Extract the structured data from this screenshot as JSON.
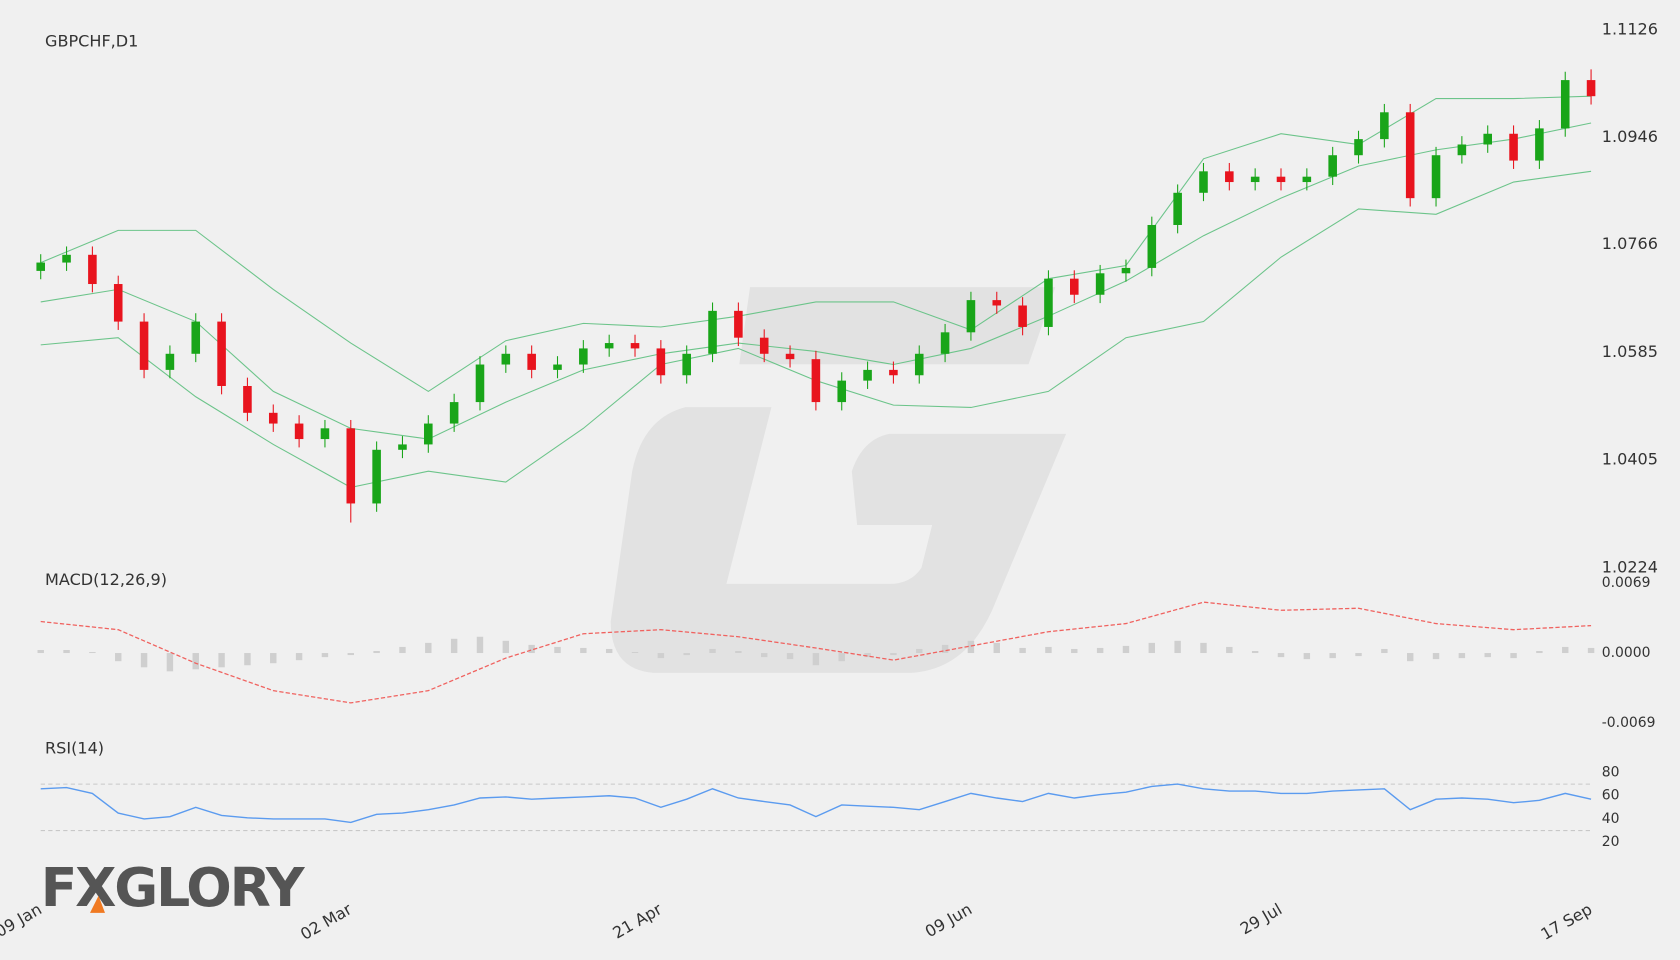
{
  "logo": "FXGLORY",
  "chart_data": [
    {
      "type": "candlestick",
      "title": "GBPCHF,D1",
      "categories": [
        "09 Jan",
        null,
        null,
        null,
        null,
        null,
        null,
        null,
        null,
        null,
        null,
        null,
        "02 Mar",
        null,
        null,
        null,
        null,
        null,
        null,
        null,
        null,
        null,
        null,
        null,
        "21 Apr",
        null,
        null,
        null,
        null,
        null,
        null,
        null,
        null,
        null,
        null,
        null,
        "09 Jun",
        null,
        null,
        null,
        null,
        null,
        null,
        null,
        null,
        null,
        null,
        null,
        "29 Jul",
        null,
        null,
        null,
        null,
        null,
        null,
        null,
        null,
        null,
        null,
        null,
        "17 Sep"
      ],
      "open": [
        1.0722,
        1.0736,
        1.0749,
        1.07,
        1.0637,
        1.0556,
        1.0583,
        1.0637,
        1.0529,
        1.0484,
        1.0466,
        1.044,
        1.0458,
        1.0332,
        1.0422,
        1.0431,
        1.0466,
        1.0502,
        1.0565,
        1.0583,
        1.0556,
        1.0565,
        1.0592,
        1.0601,
        1.0592,
        1.0547,
        1.0583,
        1.0655,
        1.061,
        1.0583,
        1.0574,
        1.0502,
        1.0538,
        1.0556,
        1.0547,
        1.0583,
        1.0619,
        1.0673,
        1.0664,
        1.0628,
        1.0709,
        1.0682,
        1.0718,
        1.0727,
        1.0799,
        1.0853,
        1.0889,
        1.0871,
        1.088,
        1.0871,
        1.088,
        1.0916,
        1.0943,
        1.0988,
        1.0844,
        1.0916,
        1.0934,
        1.0952,
        1.0907,
        1.0961,
        1.1042
      ],
      "high": [
        1.075,
        1.0763,
        1.0763,
        1.0714,
        1.0651,
        1.0597,
        1.0651,
        1.0651,
        1.0543,
        1.0498,
        1.048,
        1.0472,
        1.0472,
        1.0436,
        1.0445,
        1.048,
        1.0516,
        1.0579,
        1.0597,
        1.0597,
        1.0579,
        1.0606,
        1.0615,
        1.0615,
        1.0606,
        1.0597,
        1.0669,
        1.0669,
        1.0624,
        1.0597,
        1.0588,
        1.0552,
        1.057,
        1.057,
        1.0597,
        1.0633,
        1.0687,
        1.0687,
        1.0678,
        1.0723,
        1.0723,
        1.0732,
        1.0741,
        1.0813,
        1.0867,
        1.0903,
        1.0903,
        1.0894,
        1.0894,
        1.0894,
        1.093,
        1.0957,
        1.1002,
        1.1002,
        1.093,
        1.0948,
        1.0966,
        1.0966,
        1.0975,
        1.1056,
        1.106
      ],
      "low": [
        1.0708,
        1.0722,
        1.0686,
        1.0623,
        1.0542,
        1.0542,
        1.0569,
        1.0515,
        1.047,
        1.0452,
        1.0426,
        1.0426,
        1.03,
        1.0318,
        1.0408,
        1.0417,
        1.0452,
        1.0488,
        1.0551,
        1.0542,
        1.0542,
        1.0551,
        1.0578,
        1.0578,
        1.0533,
        1.0533,
        1.0569,
        1.0596,
        1.0569,
        1.056,
        1.0488,
        1.0488,
        1.0524,
        1.0533,
        1.0533,
        1.0569,
        1.0605,
        1.065,
        1.0614,
        1.0614,
        1.0668,
        1.0668,
        1.0704,
        1.0713,
        1.0785,
        1.0839,
        1.0857,
        1.0857,
        1.0857,
        1.0857,
        1.0866,
        1.0902,
        1.0929,
        1.083,
        1.083,
        1.0902,
        1.092,
        1.0893,
        1.0893,
        1.0947,
        1.1001
      ],
      "close": [
        1.0736,
        1.0749,
        1.07,
        1.0637,
        1.0556,
        1.0583,
        1.0637,
        1.0529,
        1.0484,
        1.0466,
        1.044,
        1.0458,
        1.0332,
        1.0422,
        1.0431,
        1.0466,
        1.0502,
        1.0565,
        1.0583,
        1.0556,
        1.0565,
        1.0592,
        1.0601,
        1.0592,
        1.0547,
        1.0583,
        1.0655,
        1.061,
        1.0583,
        1.0574,
        1.0502,
        1.0538,
        1.0556,
        1.0547,
        1.0583,
        1.0619,
        1.0673,
        1.0664,
        1.0628,
        1.0709,
        1.0682,
        1.0718,
        1.0727,
        1.0799,
        1.0853,
        1.0889,
        1.0871,
        1.088,
        1.0871,
        1.088,
        1.0916,
        1.0943,
        1.0988,
        1.0844,
        1.0916,
        1.0934,
        1.0952,
        1.0907,
        1.0961,
        1.1042,
        1.1015
      ],
      "up_color": "#19a519",
      "down_color": "#e8141e",
      "bands": {
        "color": "#6cc48a",
        "x": [
          0,
          3,
          6,
          9,
          12,
          15,
          18,
          21,
          24,
          27,
          30,
          33,
          36,
          39,
          42,
          45,
          48,
          51,
          54,
          57,
          60
        ],
        "upper": [
          1.0736,
          1.079,
          1.079,
          1.0691,
          1.0601,
          1.052,
          1.0605,
          1.0634,
          1.0628,
          1.0646,
          1.067,
          1.067,
          1.0623,
          1.0709,
          1.0731,
          1.091,
          1.0952,
          1.0934,
          1.1011,
          1.1011,
          1.1015
        ],
        "middle": [
          1.067,
          1.0691,
          1.0637,
          1.052,
          1.0458,
          1.044,
          1.0502,
          1.0556,
          1.0583,
          1.0601,
          1.0587,
          1.0565,
          1.0592,
          1.0646,
          1.0705,
          1.0781,
          1.0844,
          1.0898,
          1.0925,
          1.0943,
          1.097
        ],
        "lower": [
          1.0598,
          1.061,
          1.0511,
          1.0431,
          1.0359,
          1.0386,
          1.0368,
          1.0458,
          1.0565,
          1.0592,
          1.0538,
          1.0497,
          1.0493,
          1.052,
          1.061,
          1.0637,
          1.0745,
          1.0826,
          1.0817,
          1.0871,
          1.0889
        ]
      },
      "ylim": [
        1.0224,
        1.1126
      ],
      "yticks": [
        1.1126,
        1.0946,
        1.0766,
        1.0585,
        1.0405,
        1.0224
      ]
    },
    {
      "type": "macd",
      "title": "MACD(12,26,9)",
      "histogram": [
        0.0003,
        0.0003,
        0.0001,
        -0.0008,
        -0.0014,
        -0.0018,
        -0.0016,
        -0.0014,
        -0.0012,
        -0.001,
        -0.0007,
        -0.0004,
        -0.0002,
        0.0002,
        0.0006,
        0.001,
        0.0014,
        0.0016,
        0.0012,
        0.0008,
        0.0006,
        0.0005,
        0.0004,
        0.0001,
        -0.0005,
        -0.0002,
        0.0004,
        0.0002,
        -0.0004,
        -0.0006,
        -0.0012,
        -0.0008,
        -0.0004,
        -0.0002,
        0.0004,
        0.0008,
        0.0012,
        0.001,
        0.0005,
        0.0006,
        0.0004,
        0.0005,
        0.0007,
        0.001,
        0.0012,
        0.001,
        0.0006,
        0.0002,
        -0.0004,
        -0.0006,
        -0.0005,
        -0.0003,
        0.0004,
        -0.0008,
        -0.0006,
        -0.0005,
        -0.0004,
        -0.0005,
        0.0002,
        0.0006,
        0.0005
      ],
      "histogram_color": "#cfcfcf",
      "x": [
        0,
        3,
        6,
        9,
        12,
        15,
        18,
        21,
        24,
        27,
        30,
        33,
        36,
        39,
        42,
        45,
        48,
        51,
        54,
        57,
        60
      ],
      "signal": [
        0.0031,
        0.0023,
        -0.001,
        -0.0037,
        -0.0049,
        -0.0037,
        -0.0005,
        0.0019,
        0.0023,
        0.0016,
        0.0005,
        -0.0007,
        0.0007,
        0.0021,
        0.0029,
        0.005,
        0.0042,
        0.0044,
        0.0029,
        0.0023,
        0.0027
      ],
      "signal_color": "#f0625f",
      "ylim": [
        -0.0069,
        0.0069
      ],
      "yticks": [
        0.0069,
        {
          "value": 0,
          "label": "0.0000"
        },
        -0.0069
      ]
    },
    {
      "type": "rsi",
      "title": "RSI(14)",
      "color": "#5b9bef",
      "values": [
        66,
        67,
        62,
        45,
        40,
        42,
        50,
        43,
        41,
        40,
        40,
        40,
        37,
        44,
        45,
        48,
        52,
        58,
        59,
        57,
        58,
        59,
        60,
        58,
        50,
        57,
        66,
        58,
        55,
        52,
        42,
        52,
        51,
        50,
        48,
        55,
        62,
        58,
        55,
        62,
        58,
        61,
        63,
        68,
        70,
        66,
        64,
        64,
        62,
        62,
        64,
        65,
        66,
        48,
        57,
        58,
        57,
        54,
        56,
        62,
        57
      ],
      "levels": [
        70,
        30
      ],
      "ylim": [
        20,
        80
      ],
      "yticks": [
        80,
        60,
        40,
        20
      ]
    }
  ]
}
